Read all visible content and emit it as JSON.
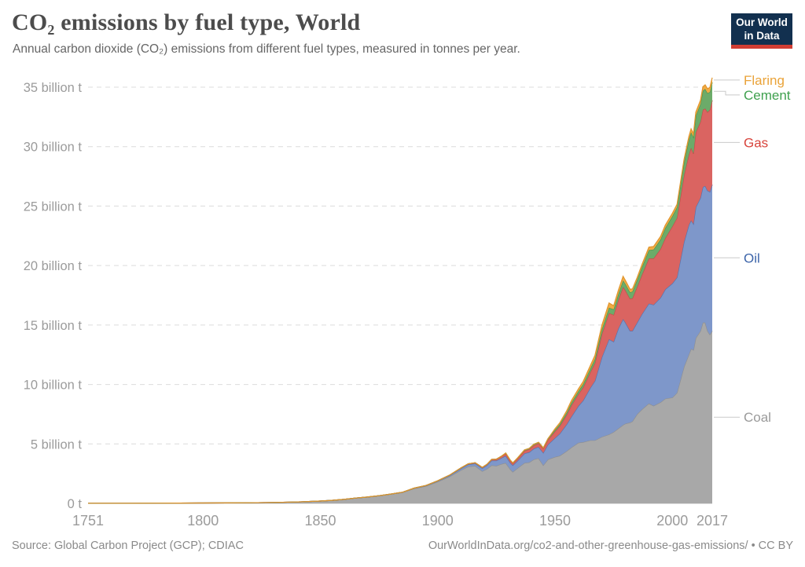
{
  "header": {
    "title": "CO₂ emissions by fuel type, World",
    "subtitle": "Annual carbon dioxide (CO₂) emissions from different fuel types, measured in tonnes per year.",
    "logo_line1": "Our World",
    "logo_line2": "in Data",
    "logo_bg_color": "#12304f",
    "logo_bar_color": "#d13d33"
  },
  "footer": {
    "source": "Source: Global Carbon Project (GCP); CDIAC",
    "url_license": "OurWorldInData.org/co2-and-other-greenhouse-gas-emissions/ • CC BY"
  },
  "chart_data": {
    "type": "area",
    "stacked": true,
    "title": "CO₂ emissions by fuel type, World",
    "unit": "billion tonnes of CO₂ per year",
    "xlim": [
      1751,
      2017
    ],
    "ylim": [
      0,
      35
    ],
    "grid": "dashed-horizontal",
    "legend_position": "right",
    "x_ticks": [
      {
        "value": 1751,
        "label": "1751"
      },
      {
        "value": 1800,
        "label": "1800"
      },
      {
        "value": 1850,
        "label": "1850"
      },
      {
        "value": 1900,
        "label": "1900"
      },
      {
        "value": 1950,
        "label": "1950"
      },
      {
        "value": 2000,
        "label": "2000"
      },
      {
        "value": 2017,
        "label": "2017"
      }
    ],
    "y_ticks": [
      {
        "value": 0,
        "label": "0 t"
      },
      {
        "value": 5,
        "label": "5 billion t"
      },
      {
        "value": 10,
        "label": "10 billion t"
      },
      {
        "value": 15,
        "label": "15 billion t"
      },
      {
        "value": 20,
        "label": "20 billion t"
      },
      {
        "value": 25,
        "label": "25 billion t"
      },
      {
        "value": 30,
        "label": "30 billion t"
      },
      {
        "value": 35,
        "label": "35 billion t"
      }
    ],
    "x": [
      1751,
      1760,
      1770,
      1780,
      1790,
      1800,
      1810,
      1820,
      1830,
      1840,
      1850,
      1855,
      1860,
      1865,
      1870,
      1875,
      1880,
      1885,
      1890,
      1895,
      1900,
      1905,
      1910,
      1913,
      1916,
      1919,
      1921,
      1923,
      1925,
      1927,
      1929,
      1931,
      1932,
      1934,
      1937,
      1939,
      1941,
      1943,
      1945,
      1947,
      1950,
      1952,
      1955,
      1957,
      1960,
      1962,
      1965,
      1967,
      1970,
      1973,
      1975,
      1977,
      1979,
      1980,
      1982,
      1983,
      1985,
      1987,
      1990,
      1992,
      1995,
      1997,
      2000,
      2002,
      2005,
      2007,
      2008,
      2009,
      2010,
      2012,
      2013,
      2014,
      2015,
      2016,
      2017
    ],
    "series": [
      {
        "name": "Coal",
        "fill": "#a8a8a8",
        "stroke": "#8f8f8f",
        "label_color": "#9a9a9a",
        "values": [
          0.01,
          0.01,
          0.015,
          0.02,
          0.025,
          0.03,
          0.04,
          0.05,
          0.08,
          0.12,
          0.2,
          0.26,
          0.34,
          0.45,
          0.53,
          0.64,
          0.78,
          0.92,
          1.25,
          1.45,
          1.82,
          2.25,
          2.8,
          3.1,
          3.15,
          2.7,
          2.9,
          3.2,
          3.15,
          3.3,
          3.4,
          2.85,
          2.65,
          2.95,
          3.4,
          3.45,
          3.7,
          3.8,
          3.2,
          3.7,
          3.9,
          4.0,
          4.4,
          4.7,
          5.1,
          5.15,
          5.3,
          5.3,
          5.6,
          5.8,
          6.0,
          6.3,
          6.6,
          6.7,
          6.8,
          6.9,
          7.5,
          7.9,
          8.4,
          8.2,
          8.5,
          8.8,
          8.9,
          9.3,
          11.5,
          12.5,
          13.0,
          12.9,
          13.9,
          14.5,
          15.2,
          15.2,
          14.5,
          14.2,
          14.5
        ]
      },
      {
        "name": "Oil",
        "fill": "#7e97ca",
        "stroke": "#5272ae",
        "label_color": "#3c64a9",
        "values": [
          0,
          0,
          0,
          0,
          0,
          0,
          0,
          0,
          0,
          0,
          0,
          0,
          0,
          0.002,
          0.003,
          0.005,
          0.009,
          0.015,
          0.03,
          0.04,
          0.06,
          0.09,
          0.14,
          0.17,
          0.2,
          0.25,
          0.3,
          0.4,
          0.45,
          0.5,
          0.6,
          0.55,
          0.55,
          0.62,
          0.8,
          0.85,
          0.9,
          0.95,
          1.05,
          1.25,
          1.6,
          1.85,
          2.25,
          2.6,
          3.1,
          3.5,
          4.4,
          5.0,
          6.7,
          8.0,
          7.6,
          8.4,
          8.9,
          8.5,
          7.7,
          7.6,
          7.7,
          8.0,
          8.4,
          8.5,
          8.8,
          9.2,
          9.6,
          9.7,
          10.5,
          10.9,
          10.8,
          10.6,
          11.0,
          11.2,
          11.4,
          11.5,
          11.8,
          12.0,
          12.3
        ]
      },
      {
        "name": "Gas",
        "fill": "#da6461",
        "stroke": "#c44a46",
        "label_color": "#d8443c",
        "values": [
          0,
          0,
          0,
          0,
          0,
          0,
          0,
          0,
          0,
          0,
          0,
          0,
          0,
          0,
          0,
          0,
          0,
          0,
          0.01,
          0.015,
          0.02,
          0.03,
          0.05,
          0.06,
          0.07,
          0.08,
          0.08,
          0.1,
          0.12,
          0.15,
          0.18,
          0.17,
          0.16,
          0.18,
          0.22,
          0.25,
          0.28,
          0.3,
          0.35,
          0.4,
          0.55,
          0.65,
          0.8,
          0.95,
          1.0,
          1.1,
          1.3,
          1.5,
          1.95,
          2.2,
          2.25,
          2.4,
          2.7,
          2.7,
          2.7,
          2.75,
          3.0,
          3.3,
          3.8,
          3.9,
          4.1,
          4.3,
          4.8,
          5.0,
          5.6,
          5.9,
          6.1,
          5.9,
          6.3,
          6.4,
          6.5,
          6.5,
          6.6,
          6.9,
          7.1
        ]
      },
      {
        "name": "Cement",
        "fill": "#6cab69",
        "stroke": "#47934d",
        "label_color": "#3fa04e",
        "values": [
          0,
          0,
          0,
          0,
          0,
          0,
          0,
          0,
          0,
          0,
          0,
          0,
          0,
          0,
          0,
          0,
          0,
          0,
          0,
          0,
          0,
          0,
          0,
          0,
          0,
          0,
          0,
          0,
          0,
          0,
          0.05,
          0.05,
          0.05,
          0.06,
          0.08,
          0.08,
          0.09,
          0.09,
          0.07,
          0.1,
          0.13,
          0.15,
          0.2,
          0.22,
          0.25,
          0.28,
          0.32,
          0.35,
          0.4,
          0.45,
          0.47,
          0.5,
          0.55,
          0.55,
          0.55,
          0.57,
          0.6,
          0.65,
          0.7,
          0.75,
          0.8,
          0.85,
          0.85,
          0.9,
          1.1,
          1.25,
          1.3,
          1.4,
          1.4,
          1.5,
          1.6,
          1.65,
          1.6,
          1.5,
          1.5
        ]
      },
      {
        "name": "Flaring",
        "fill": "#f1ab44",
        "stroke": "#e0952d",
        "label_color": "#eaa339",
        "values": [
          0,
          0,
          0,
          0,
          0,
          0,
          0,
          0,
          0,
          0,
          0,
          0,
          0,
          0,
          0,
          0,
          0,
          0,
          0,
          0,
          0,
          0,
          0,
          0,
          0,
          0,
          0,
          0,
          0,
          0,
          0,
          0,
          0,
          0,
          0,
          0,
          0,
          0,
          0,
          0,
          0.1,
          0.12,
          0.15,
          0.18,
          0.2,
          0.22,
          0.25,
          0.3,
          0.35,
          0.4,
          0.3,
          0.32,
          0.35,
          0.3,
          0.25,
          0.22,
          0.2,
          0.22,
          0.25,
          0.25,
          0.25,
          0.25,
          0.25,
          0.25,
          0.25,
          0.28,
          0.3,
          0.3,
          0.3,
          0.32,
          0.33,
          0.35,
          0.37,
          0.38,
          0.4
        ]
      }
    ]
  }
}
